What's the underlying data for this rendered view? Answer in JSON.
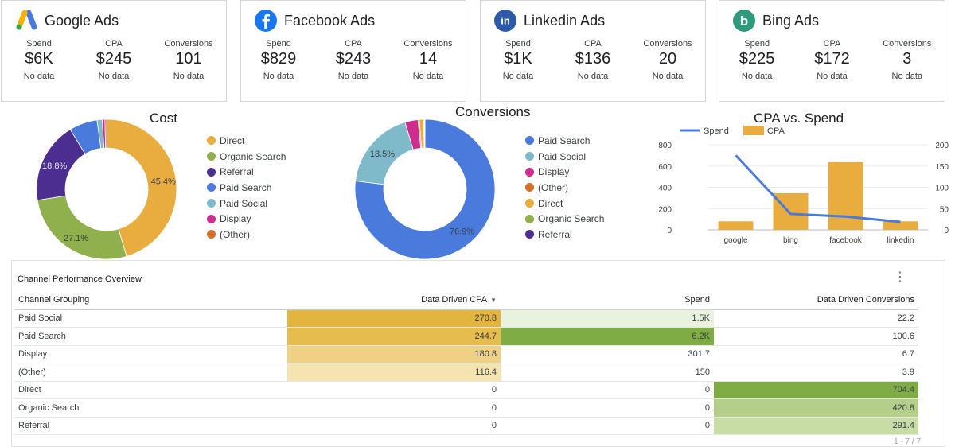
{
  "cards": [
    {
      "title": "Google Ads",
      "metrics": [
        {
          "label": "Spend",
          "value": "$6K",
          "sub": "No data"
        },
        {
          "label": "CPA",
          "value": "$245",
          "sub": "No data"
        },
        {
          "label": "Conversions",
          "value": "101",
          "sub": "No data"
        }
      ]
    },
    {
      "title": "Facebook Ads",
      "metrics": [
        {
          "label": "Spend",
          "value": "$829",
          "sub": "No data"
        },
        {
          "label": "CPA",
          "value": "$243",
          "sub": "No data"
        },
        {
          "label": "Conversions",
          "value": "14",
          "sub": "No data"
        }
      ]
    },
    {
      "title": "Linkedin Ads",
      "metrics": [
        {
          "label": "Spend",
          "value": "$1K",
          "sub": "No data"
        },
        {
          "label": "CPA",
          "value": "$136",
          "sub": "No data"
        },
        {
          "label": "Conversions",
          "value": "20",
          "sub": "No data"
        }
      ]
    },
    {
      "title": "Bing Ads",
      "metrics": [
        {
          "label": "Spend",
          "value": "$225",
          "sub": "No data"
        },
        {
          "label": "CPA",
          "value": "$172",
          "sub": "No data"
        },
        {
          "label": "Conversions",
          "value": "3",
          "sub": "No data"
        }
      ]
    }
  ],
  "brand_logos": {
    "linkedin": "in",
    "bing": "b"
  },
  "chart_data": [
    {
      "type": "pie",
      "title": "Cost",
      "labels": [
        "Direct",
        "Organic Search",
        "Referral",
        "Paid Search",
        "Paid Social",
        "Display",
        "(Other)"
      ],
      "values": [
        45.4,
        27.1,
        18.8,
        6.5,
        1.2,
        0.6,
        0.4
      ],
      "colors": [
        "#e8ac3f",
        "#8fb04c",
        "#4b2e8f",
        "#4a7bdc",
        "#7fbacb",
        "#cc2d8e",
        "#d4702a"
      ],
      "data_labels": [
        "45.4%",
        "27.1%",
        "18.8%",
        "",
        "",
        "",
        ""
      ]
    },
    {
      "type": "pie",
      "title": "Conversions",
      "labels": [
        "Paid Search",
        "Paid Social",
        "Display",
        "(Other)",
        "Direct",
        "Organic Search",
        "Referral"
      ],
      "values": [
        76.9,
        18.5,
        3.0,
        0.3,
        1.0,
        0.2,
        0.1
      ],
      "colors": [
        "#4a7bdc",
        "#7fbacb",
        "#cc2d8e",
        "#d4702a",
        "#e8ac3f",
        "#8fb04c",
        "#4b2e8f"
      ],
      "data_labels": [
        "76.9%",
        "18.5%",
        "",
        "",
        "",
        "",
        ""
      ]
    },
    {
      "type": "bar",
      "title": "CPA vs. Spend",
      "categories": [
        "google",
        "bing",
        "facebook",
        "linkedin"
      ],
      "series": [
        {
          "name": "Spend",
          "type": "line",
          "axis": "left",
          "color": "#4a7bdc",
          "values": [
            700,
            150,
            125,
            75
          ]
        },
        {
          "name": "CPA",
          "type": "bar",
          "axis": "right",
          "color": "#e8ac3f",
          "values": [
            20,
            86,
            159,
            20
          ]
        }
      ],
      "ylim_left": [
        0,
        800
      ],
      "yticks_left": [
        "0",
        "200",
        "400",
        "600",
        "800"
      ],
      "ylim_right": [
        0,
        200
      ],
      "yticks_right": [
        "0",
        "50",
        "100",
        "150",
        "200"
      ]
    }
  ],
  "table": {
    "title": "Channel Performance Overview",
    "menu_icon": "⋮",
    "sort_icon": "▼",
    "columns": [
      "Channel Grouping",
      "Data Driven CPA",
      "Spend",
      "Data Driven Conversions"
    ],
    "rows": [
      {
        "channel": "Paid Social",
        "cpa": "270.8",
        "spend": "1.5K",
        "conv": "22.2",
        "cpa_bg": "#e3b43e",
        "spend_bg": "#e9f2dc",
        "conv_bg": "#ffffff"
      },
      {
        "channel": "Paid Search",
        "cpa": "244.7",
        "spend": "6.2K",
        "conv": "100.6",
        "cpa_bg": "#e7bc4f",
        "spend_bg": "#7fac45",
        "conv_bg": "#ffffff"
      },
      {
        "channel": "Display",
        "cpa": "180.8",
        "spend": "301.7",
        "conv": "6.7",
        "cpa_bg": "#eed184",
        "spend_bg": "#ffffff",
        "conv_bg": "#ffffff"
      },
      {
        "channel": "(Other)",
        "cpa": "116.4",
        "spend": "150",
        "conv": "3.9",
        "cpa_bg": "#f5e3b0",
        "spend_bg": "#ffffff",
        "conv_bg": "#ffffff"
      },
      {
        "channel": "Direct",
        "cpa": "0",
        "spend": "0",
        "conv": "704.4",
        "cpa_bg": "#ffffff",
        "spend_bg": "#ffffff",
        "conv_bg": "#7fac45"
      },
      {
        "channel": "Organic Search",
        "cpa": "0",
        "spend": "0",
        "conv": "420.8",
        "cpa_bg": "#ffffff",
        "spend_bg": "#ffffff",
        "conv_bg": "#b3cf8a"
      },
      {
        "channel": "Referral",
        "cpa": "0",
        "spend": "0",
        "conv": "291.4",
        "cpa_bg": "#ffffff",
        "spend_bg": "#ffffff",
        "conv_bg": "#c8dca6"
      }
    ],
    "pagination": "1 - 7 / 7"
  }
}
